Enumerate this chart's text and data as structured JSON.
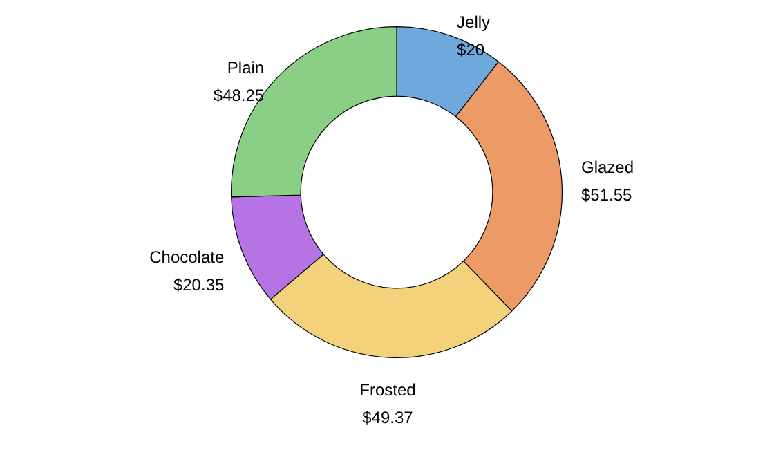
{
  "chart_data": {
    "type": "donut",
    "categories": [
      "Jelly",
      "Glazed",
      "Frosted",
      "Chocolate",
      "Plain"
    ],
    "values": [
      20,
      51.55,
      49.37,
      20.35,
      48.25
    ],
    "value_labels": [
      "$20",
      "$51.55",
      "$49.37",
      "$20.35",
      "$48.25"
    ],
    "colors": [
      "#6fa8dc",
      "#ec9a66",
      "#f4d27c",
      "#b673e6",
      "#8bcf86"
    ],
    "legend": false
  }
}
